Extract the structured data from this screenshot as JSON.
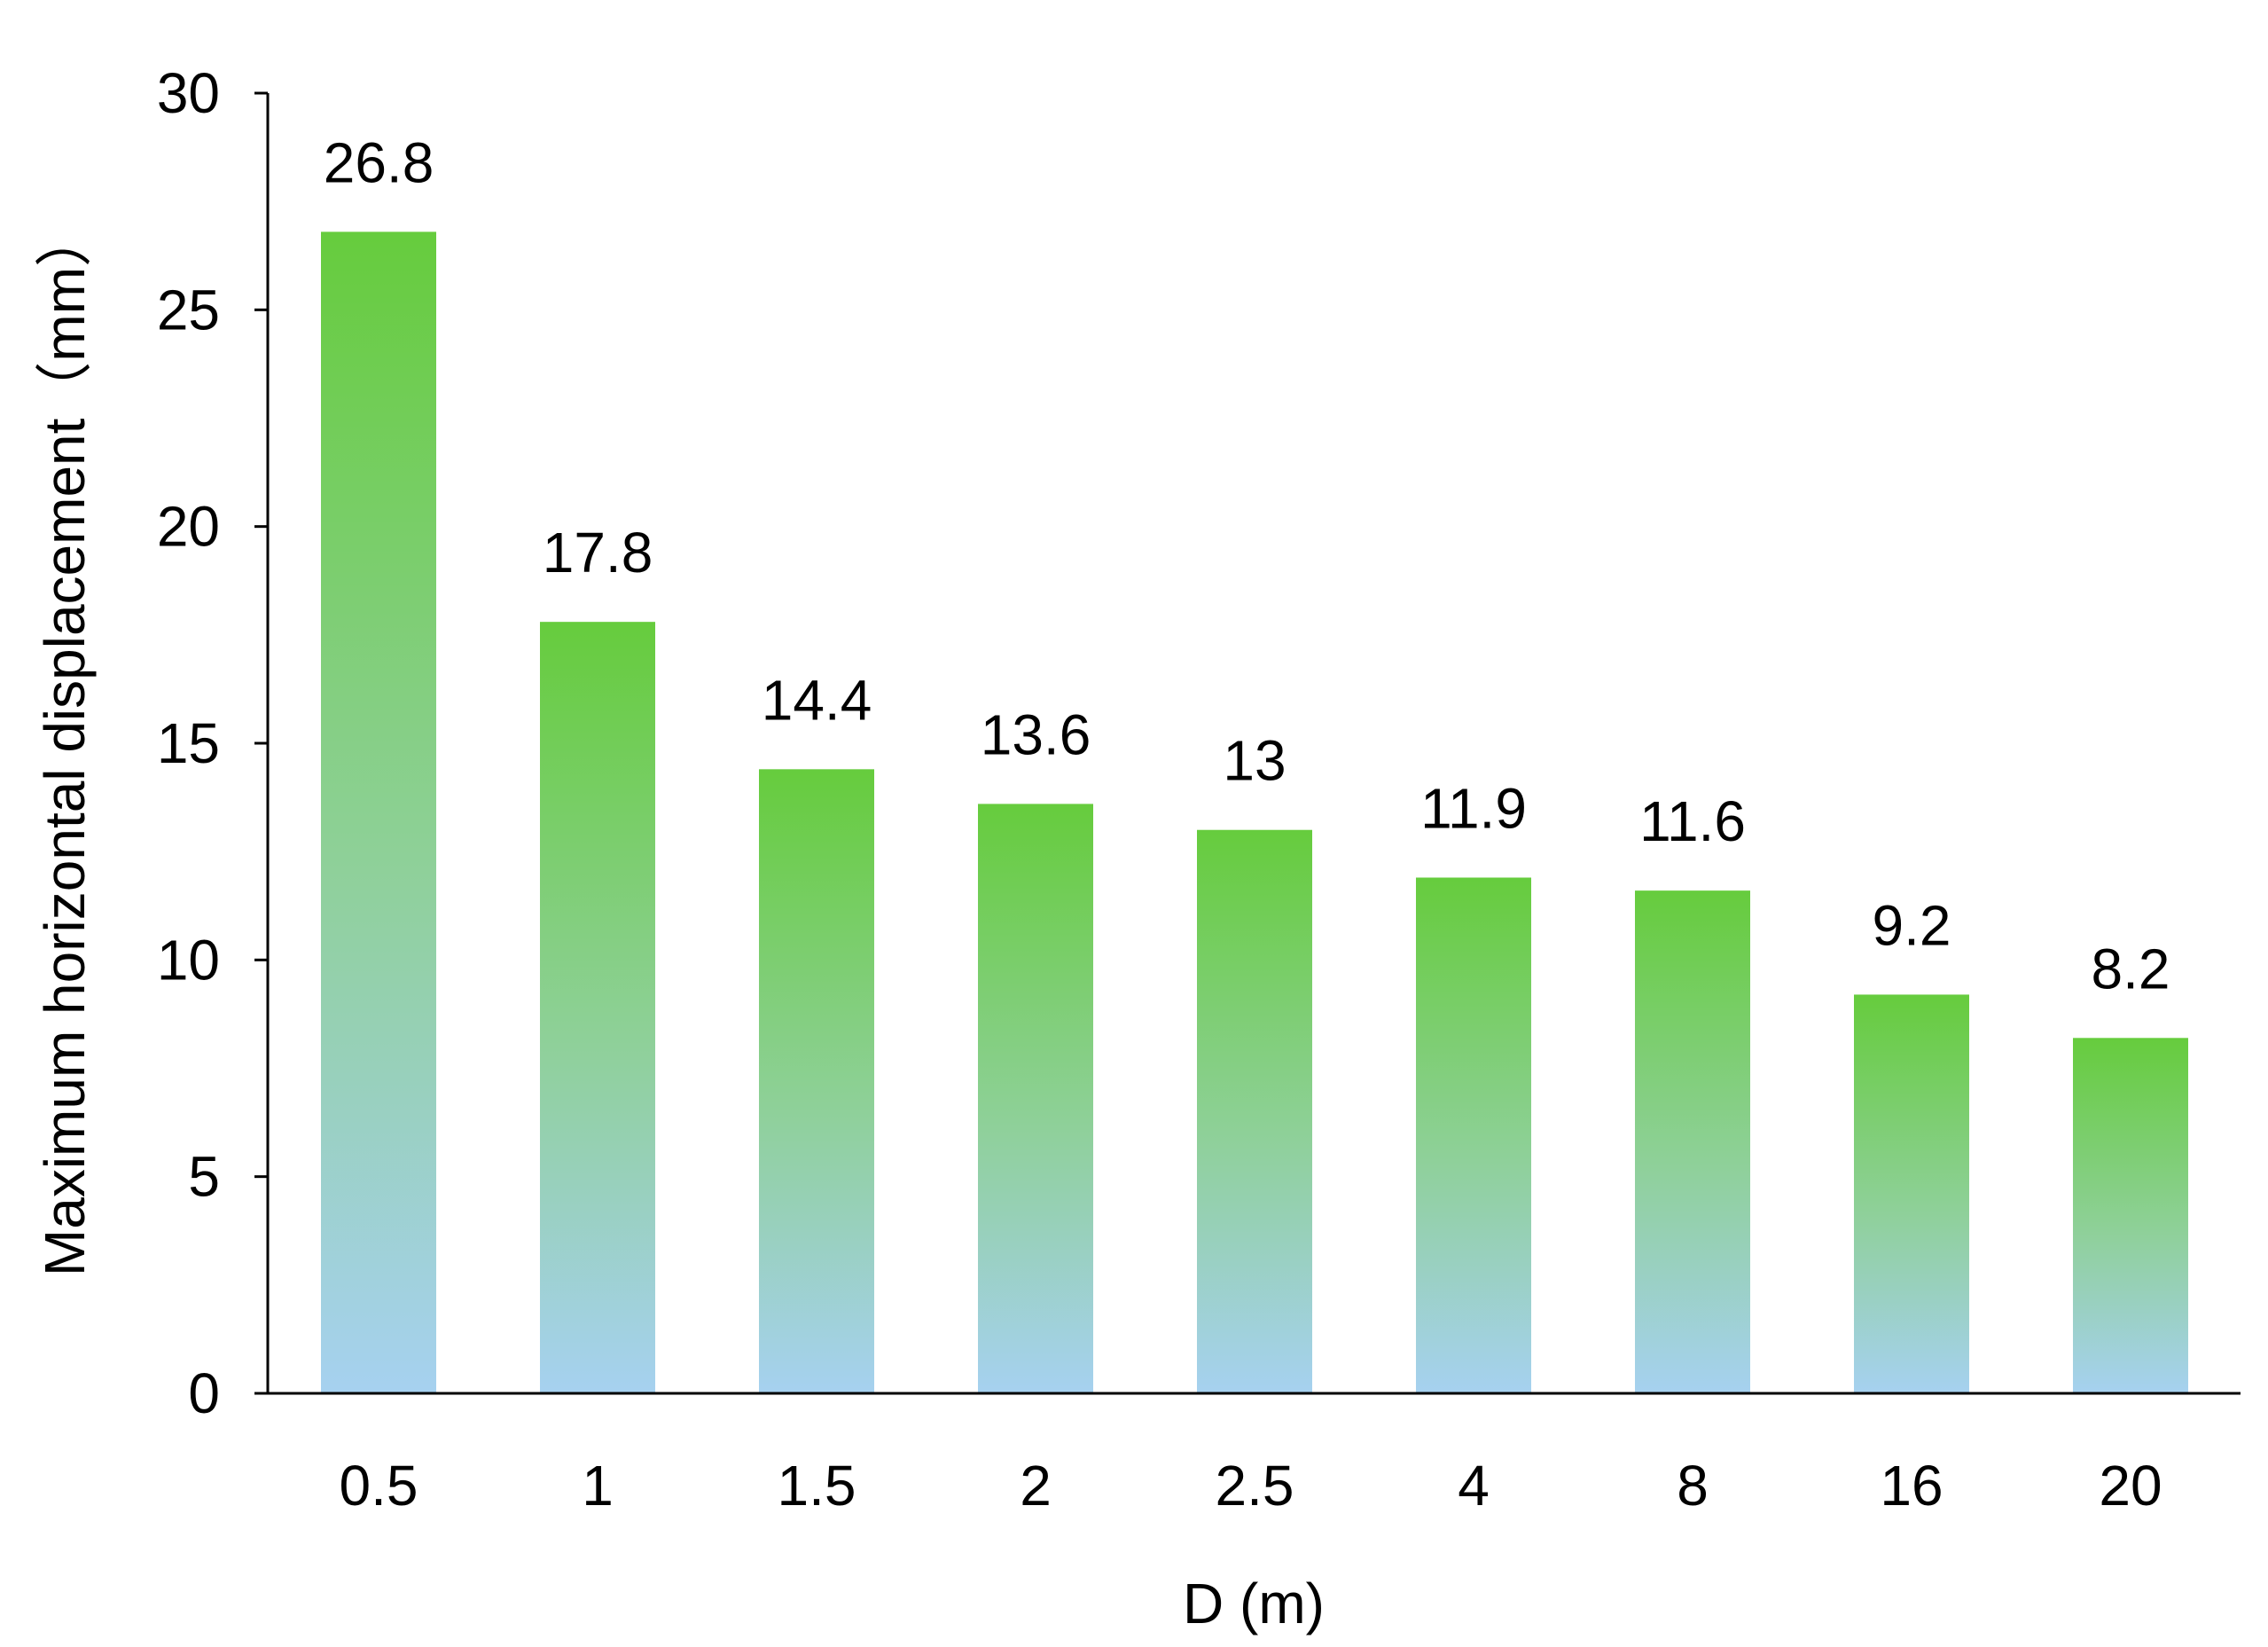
{
  "chart_data": {
    "type": "bar",
    "categories": [
      "0.5",
      "1",
      "1.5",
      "2",
      "2.5",
      "4",
      "8",
      "16",
      "20"
    ],
    "values": [
      26.8,
      17.8,
      14.4,
      13.6,
      13,
      11.9,
      11.6,
      9.2,
      8.2
    ],
    "data_labels": [
      "26.8",
      "17.8",
      "14.4",
      "13.6",
      "13",
      "11.9",
      "11.6",
      "9.2",
      "8.2"
    ],
    "xlabel": "D (m)",
    "ylabel": "Maximum horizontal displacement（mm）",
    "ylim": [
      0,
      30
    ],
    "yticks": [
      0,
      5,
      10,
      15,
      20,
      25,
      30
    ],
    "ytick_labels": [
      "0",
      "5",
      "10",
      "15",
      "20",
      "25",
      "30"
    ],
    "grid": false,
    "legend": "none",
    "colors": {
      "bar_top": "#66cc3d",
      "bar_mid": "#8fd09a",
      "bar_bottom": "#a6d1f0",
      "axis": "#000000"
    }
  }
}
